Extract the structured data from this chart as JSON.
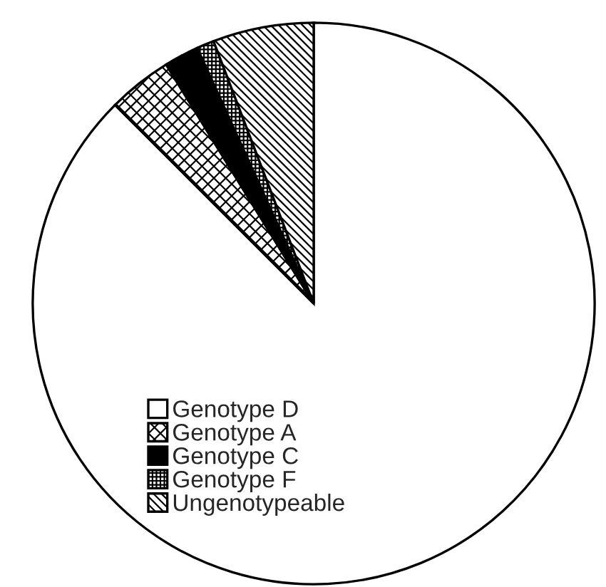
{
  "chart_data": {
    "type": "pie",
    "categories": [
      "Genotype D",
      "Genotype A",
      "Genotype C",
      "Genotype F",
      "Ungenotypeable"
    ],
    "values": [
      87.5,
      3.7,
      2.0,
      1.0,
      5.8
    ],
    "colors": [
      "#ffffff",
      "#000000",
      "#000000",
      "#000000",
      "#000000"
    ],
    "legend": "bottom left"
  }
}
